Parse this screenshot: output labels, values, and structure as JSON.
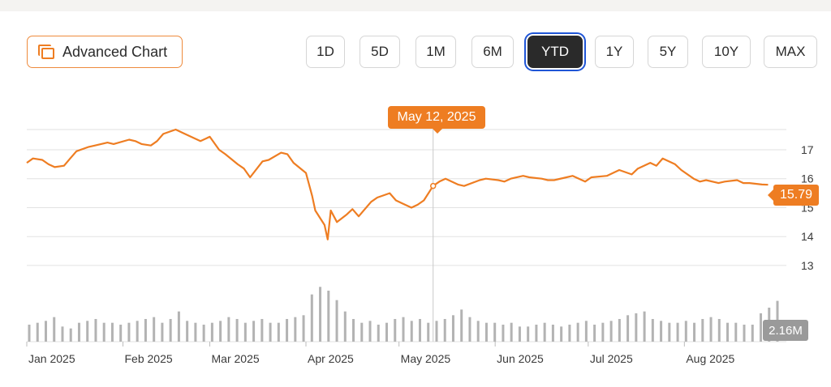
{
  "toolbar": {
    "advanced_chart_label": "Advanced Chart",
    "ranges": [
      {
        "label": "1D",
        "active": false
      },
      {
        "label": "5D",
        "active": false
      },
      {
        "label": "1M",
        "active": false
      },
      {
        "label": "6M",
        "active": false
      },
      {
        "label": "YTD",
        "active": true
      },
      {
        "label": "1Y",
        "active": false
      },
      {
        "label": "5Y",
        "active": false
      },
      {
        "label": "10Y",
        "active": false
      },
      {
        "label": "MAX",
        "active": false
      }
    ]
  },
  "icons": {
    "advanced_chart": "chart-layers-icon"
  },
  "colors": {
    "line": "#ee7d22",
    "volume": "#b3b3b3",
    "grid": "#e2e2e2",
    "badge_volume": "#9a9a9a"
  },
  "chart_data": {
    "type": "line",
    "y_ticks": [
      13,
      14,
      15,
      16,
      17
    ],
    "ylim": [
      12.55,
      17.7
    ],
    "x_ticks": [
      "Jan 2025",
      "Feb 2025",
      "Mar 2025",
      "Apr 2025",
      "May 2025",
      "Jun 2025",
      "Jul 2025",
      "Aug 2025"
    ],
    "x_tick_dates": [
      "2025-01-01",
      "2025-02-01",
      "2025-03-01",
      "2025-04-01",
      "2025-05-01",
      "2025-06-01",
      "2025-07-01",
      "2025-08-01"
    ],
    "series": [
      {
        "type": "line",
        "x": [
          "2025-01-01",
          "2025-01-03",
          "2025-01-06",
          "2025-01-08",
          "2025-01-10",
          "2025-01-13",
          "2025-01-15",
          "2025-01-17",
          "2025-01-21",
          "2025-01-23",
          "2025-01-27",
          "2025-01-29",
          "2025-02-03",
          "2025-02-05",
          "2025-02-07",
          "2025-02-10",
          "2025-02-12",
          "2025-02-14",
          "2025-02-18",
          "2025-02-20",
          "2025-02-24",
          "2025-02-26",
          "2025-03-01",
          "2025-03-04",
          "2025-03-06",
          "2025-03-10",
          "2025-03-12",
          "2025-03-14",
          "2025-03-18",
          "2025-03-20",
          "2025-03-24",
          "2025-03-26",
          "2025-03-28",
          "2025-04-01",
          "2025-04-03",
          "2025-04-04",
          "2025-04-07",
          "2025-04-08",
          "2025-04-09",
          "2025-04-10",
          "2025-04-11",
          "2025-04-14",
          "2025-04-16",
          "2025-04-18",
          "2025-04-22",
          "2025-04-24",
          "2025-04-28",
          "2025-04-30",
          "2025-05-02",
          "2025-05-05",
          "2025-05-07",
          "2025-05-09",
          "2025-05-12",
          "2025-05-14",
          "2025-05-16",
          "2025-05-20",
          "2025-05-22",
          "2025-05-27",
          "2025-05-29",
          "2025-06-02",
          "2025-06-04",
          "2025-06-06",
          "2025-06-10",
          "2025-06-12",
          "2025-06-16",
          "2025-06-18",
          "2025-06-20",
          "2025-06-24",
          "2025-06-26",
          "2025-06-30",
          "2025-07-02",
          "2025-07-07",
          "2025-07-09",
          "2025-07-11",
          "2025-07-15",
          "2025-07-17",
          "2025-07-21",
          "2025-07-23",
          "2025-07-25",
          "2025-07-29",
          "2025-07-31",
          "2025-08-04",
          "2025-08-06",
          "2025-08-08",
          "2025-08-12",
          "2025-08-14",
          "2025-08-18",
          "2025-08-20",
          "2025-08-22",
          "2025-08-26",
          "2025-08-28"
        ],
        "y": [
          16.55,
          16.7,
          16.65,
          16.5,
          16.4,
          16.45,
          16.7,
          16.95,
          17.1,
          17.15,
          17.25,
          17.2,
          17.35,
          17.3,
          17.2,
          17.15,
          17.3,
          17.55,
          17.7,
          17.6,
          17.4,
          17.3,
          17.45,
          17.0,
          16.85,
          16.5,
          16.35,
          16.05,
          16.6,
          16.65,
          16.9,
          16.85,
          16.55,
          16.2,
          15.4,
          14.9,
          14.4,
          13.9,
          14.9,
          14.7,
          14.5,
          14.75,
          14.95,
          14.7,
          15.2,
          15.35,
          15.5,
          15.25,
          15.15,
          15.0,
          15.1,
          15.25,
          15.75,
          15.9,
          16.0,
          15.8,
          15.75,
          15.95,
          16.0,
          15.95,
          15.9,
          16.0,
          16.1,
          16.05,
          16.0,
          15.95,
          15.95,
          16.05,
          16.1,
          15.9,
          16.05,
          16.1,
          16.2,
          16.3,
          16.15,
          16.35,
          16.55,
          16.45,
          16.7,
          16.5,
          16.3,
          16.0,
          15.9,
          15.95,
          15.85,
          15.9,
          15.95,
          15.85,
          15.85,
          15.8,
          15.79
        ]
      }
    ],
    "volume": [
      0.9,
      1.0,
      1.1,
      1.3,
      0.8,
      0.7,
      1.0,
      1.1,
      1.2,
      1.0,
      1.0,
      0.9,
      1.0,
      1.1,
      1.2,
      1.3,
      1.0,
      1.2,
      1.6,
      1.1,
      1.0,
      0.9,
      1.0,
      1.1,
      1.3,
      1.2,
      1.0,
      1.1,
      1.2,
      1.0,
      1.0,
      1.2,
      1.3,
      1.4,
      2.5,
      2.9,
      2.7,
      2.2,
      1.6,
      1.2,
      1.0,
      1.1,
      0.9,
      1.0,
      1.2,
      1.3,
      1.1,
      1.2,
      1.0,
      1.1,
      1.2,
      1.4,
      1.7,
      1.3,
      1.1,
      1.0,
      1.0,
      0.9,
      1.0,
      0.8,
      0.8,
      0.9,
      1.0,
      0.9,
      0.8,
      0.9,
      1.0,
      1.1,
      0.9,
      1.0,
      1.1,
      1.2,
      1.4,
      1.5,
      1.6,
      1.2,
      1.1,
      1.0,
      1.0,
      1.1,
      1.0,
      1.2,
      1.3,
      1.2,
      1.0,
      1.0,
      0.9,
      0.9,
      1.5,
      1.8,
      2.16
    ],
    "volume_ylim": [
      0,
      3.0
    ],
    "crosshair_x": "2025-05-12",
    "tooltip_label": "May 12, 2025",
    "last_price_label": "15.79",
    "last_volume_label": "2.16M",
    "grid": true
  }
}
